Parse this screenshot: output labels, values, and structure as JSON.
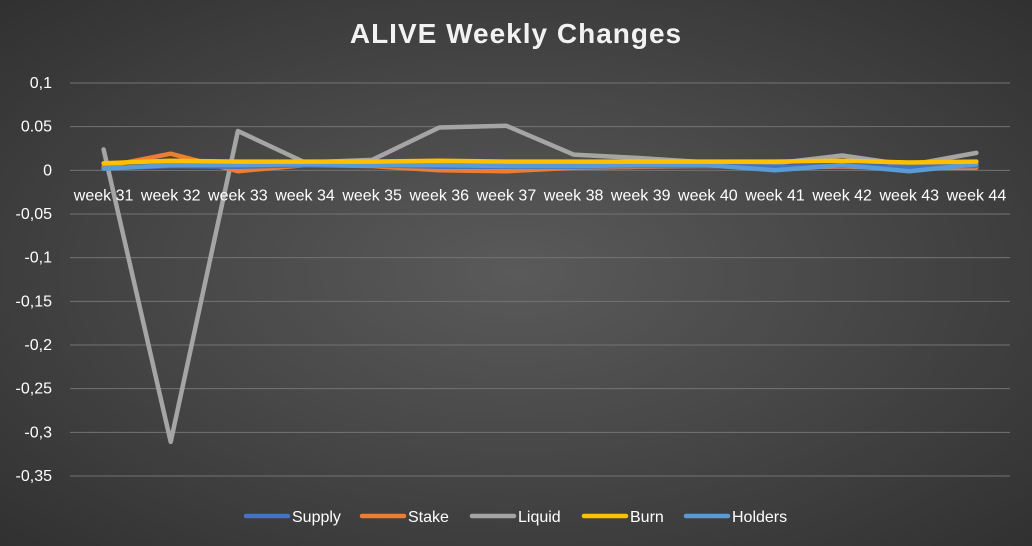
{
  "chart_data": {
    "type": "line",
    "title": "ALIVE Weekly Changes",
    "xlabel": "",
    "ylabel": "",
    "categories": [
      "week 31",
      "week 32",
      "week 33",
      "week 34",
      "week 35",
      "week 36",
      "week 37",
      "week 38",
      "week 39",
      "week 40",
      "week 41",
      "week 42",
      "week 43",
      "week 44"
    ],
    "ylim": [
      -0.35,
      0.1
    ],
    "yticks": [
      0.1,
      0.05,
      0,
      -0.05,
      -0.1,
      -0.15,
      -0.2,
      -0.25,
      -0.3,
      -0.35
    ],
    "ytick_labels": [
      "0,1",
      "0.05",
      "0",
      "-0,05",
      "-0,1",
      "-0,15",
      "-0,2",
      "-0,25",
      "-0,3",
      "-0,35"
    ],
    "grid": true,
    "legend_position": "bottom",
    "series": [
      {
        "name": "Supply",
        "color": "#4472c4",
        "values": [
          0.002,
          0.005,
          0.004,
          0.006,
          0.006,
          0.004,
          0.004,
          0.004,
          0.005,
          0.005,
          0.004,
          0.005,
          0.004,
          0.005
        ]
      },
      {
        "name": "Stake",
        "color": "#ed7d31",
        "values": [
          0.004,
          0.019,
          -0.001,
          0.006,
          0.005,
          0.0,
          -0.001,
          0.003,
          0.004,
          0.005,
          0.004,
          0.004,
          0.003,
          0.003
        ]
      },
      {
        "name": "Liquid",
        "color": "#a5a5a5",
        "values": [
          0.024,
          -0.311,
          0.045,
          0.009,
          0.012,
          0.049,
          0.051,
          0.018,
          0.014,
          0.009,
          0.008,
          0.017,
          0.006,
          0.02
        ]
      },
      {
        "name": "Burn",
        "color": "#ffc000",
        "values": [
          0.008,
          0.011,
          0.01,
          0.01,
          0.01,
          0.011,
          0.01,
          0.01,
          0.01,
          0.01,
          0.01,
          0.011,
          0.009,
          0.01
        ]
      },
      {
        "name": "Holders",
        "color": "#5b9bd5",
        "values": [
          0.002,
          0.006,
          0.006,
          0.007,
          0.006,
          0.006,
          0.005,
          0.005,
          0.006,
          0.006,
          0.0,
          0.006,
          -0.001,
          0.007
        ]
      }
    ]
  }
}
